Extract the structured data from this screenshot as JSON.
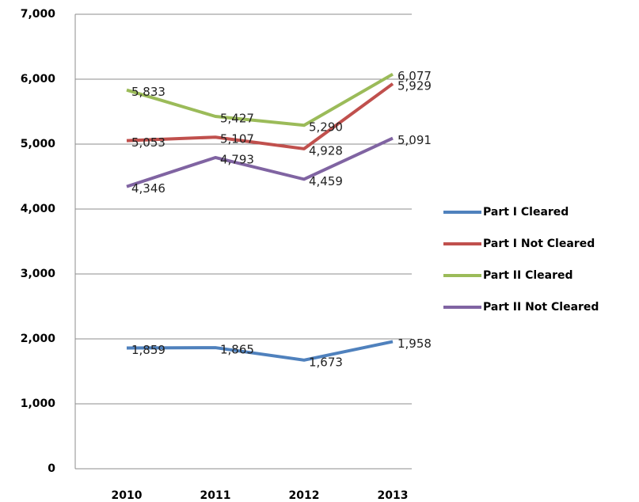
{
  "chart_data": {
    "type": "line",
    "categories": [
      "2010",
      "2011",
      "2012",
      "2013"
    ],
    "series": [
      {
        "name": "Part I Cleared",
        "color": "#4f81bd",
        "values": [
          1859,
          1865,
          1673,
          1958
        ],
        "value_labels": [
          "1,859",
          "1,865",
          "1,673",
          "1,958"
        ]
      },
      {
        "name": "Part I Not Cleared",
        "color": "#c0504d",
        "values": [
          5053,
          5107,
          4928,
          5929
        ],
        "value_labels": [
          "5,053",
          "5,107",
          "4,928",
          "5,929"
        ]
      },
      {
        "name": "Part II Cleared",
        "color": "#9bbb59",
        "values": [
          5833,
          5427,
          5290,
          6077
        ],
        "value_labels": [
          "5,833",
          "5,427",
          "5,290",
          "6,077"
        ]
      },
      {
        "name": "Part II Not Cleared",
        "color": "#8064a2",
        "values": [
          4346,
          4793,
          4459,
          5091
        ],
        "value_labels": [
          "4,346",
          "4,793",
          "4,459",
          "5,091"
        ]
      }
    ],
    "ylim": [
      0,
      7000
    ],
    "yticks": [
      0,
      {
        "value": 1000,
        "label": "1,000"
      },
      {
        "value": 2000,
        "label": "2,000"
      },
      {
        "value": 3000,
        "label": "3,000"
      },
      {
        "value": 4000,
        "label": "4,000"
      },
      {
        "value": 5000,
        "label": "5,000"
      },
      {
        "value": 6000,
        "label": "6,000"
      },
      {
        "value": 7000,
        "label": "7,000"
      }
    ],
    "grid": true,
    "legend": "right"
  }
}
